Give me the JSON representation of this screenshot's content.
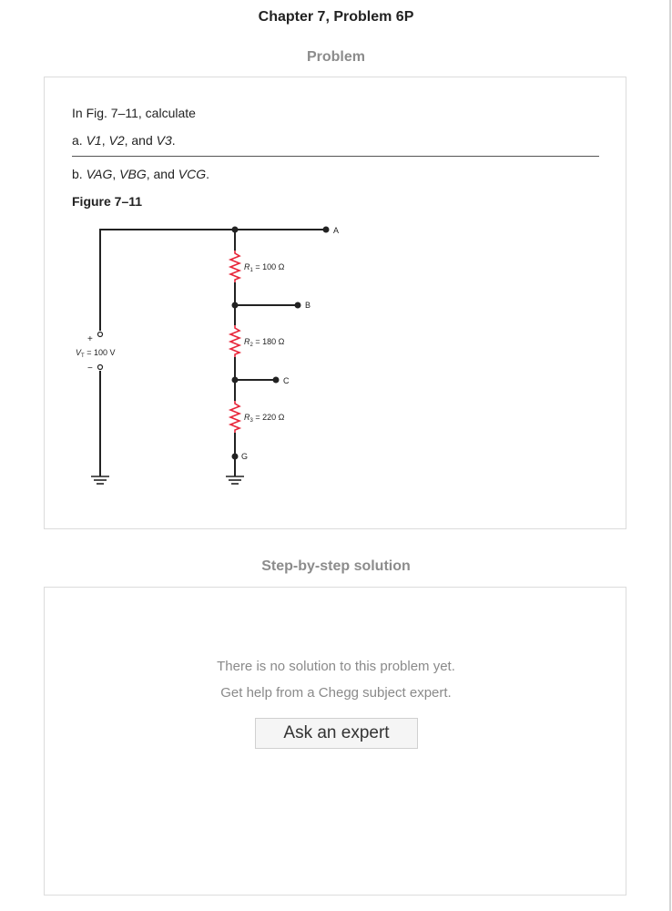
{
  "header": {
    "title": "Chapter 7, Problem 6P"
  },
  "problem": {
    "heading": "Problem",
    "intro": "In Fig. 7–11, calculate",
    "part_a": {
      "prefix": "a. ",
      "v1": "V1",
      "sep1": ", ",
      "v2": "V2",
      "sep2": ", and ",
      "v3": "V3",
      "suffix": "."
    },
    "part_b": {
      "prefix": "b. ",
      "vag": "VAG",
      "sep1": ", ",
      "vbg": "VBG",
      "sep2": ", and ",
      "vcg": "VCG",
      "suffix": "."
    },
    "figure_label": "Figure 7–11",
    "figure": {
      "source": {
        "sym": "V",
        "sub": "T",
        "val": " = 100 V",
        "plus": "+",
        "minus": "−"
      },
      "resistors": [
        {
          "sym": "R",
          "sub": "1",
          "val": " = 100 Ω"
        },
        {
          "sym": "R",
          "sub": "2",
          "val": " = 180 Ω"
        },
        {
          "sym": "R",
          "sub": "3",
          "val": " = 220 Ω"
        }
      ],
      "nodes": {
        "a": "A",
        "b": "B",
        "c": "C",
        "g": "G"
      },
      "colors": {
        "resistor": "#e8263a",
        "wire": "#222222"
      }
    }
  },
  "solution": {
    "heading": "Step-by-step solution",
    "no_solution": "There is no solution to this problem yet.",
    "get_help": "Get help from a Chegg subject expert.",
    "ask_button": "Ask an expert"
  }
}
